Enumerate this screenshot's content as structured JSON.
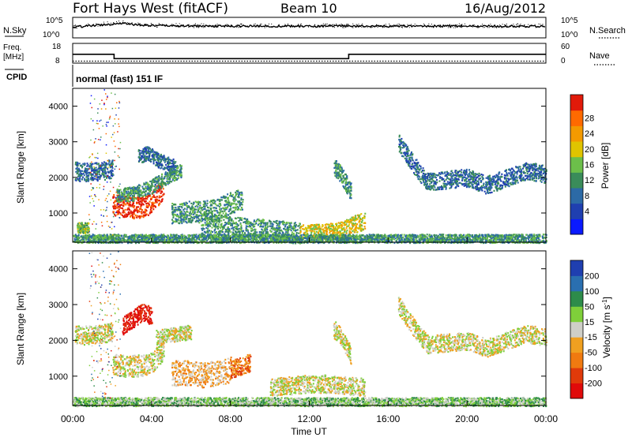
{
  "header": {
    "station": "Fort Hays West (fitACF)",
    "beam": "Beam 10",
    "date": "16/Aug/2012"
  },
  "status_panel": {
    "left_nsky": "N.Sky",
    "right_nsearch": "N.Search",
    "noise_ticks_left": [
      "10^5",
      "10^0"
    ],
    "noise_ticks_right": [
      "10^5",
      "10^0"
    ],
    "freq_label_line1": "Freq.",
    "freq_label_line2": "[MHz]",
    "freq_ticks": [
      "18",
      "8"
    ],
    "nave_label": "Nave",
    "nave_ticks": [
      "60",
      "0"
    ],
    "cpid_label": "CPID",
    "cpid_text": "normal (fast) 151 IF"
  },
  "colors": {
    "power_scale": [
      "#0a1aff",
      "#1f3fb0",
      "#2c6aa6",
      "#3a8c5a",
      "#6cbf4a",
      "#e0c400",
      "#f39a00",
      "#ff6a00",
      "#e11a0a"
    ],
    "velocity_scale": [
      "#1f3fb0",
      "#2a6fb0",
      "#2d8c4a",
      "#7fcf3a",
      "#cfcfc8",
      "#f0a020",
      "#f07a10",
      "#e03a0a",
      "#e00a0a"
    ]
  },
  "chart_data": [
    {
      "type": "line",
      "title": "Fort Hays West (fitACF)  Beam 10  16/Aug/2012",
      "panel": "noise",
      "x": [
        0,
        1,
        2,
        2.5,
        3,
        4,
        6,
        8,
        12,
        16,
        20,
        24
      ],
      "series": [
        {
          "name": "N.Sky",
          "values": [
            2.6,
            3.0,
            3.4,
            3.6,
            3.3,
            3.0,
            2.9,
            2.85,
            2.85,
            2.85,
            2.85,
            2.85
          ]
        }
      ],
      "ylim": [
        0,
        5
      ],
      "right_series_label": "N.Search"
    },
    {
      "type": "line",
      "panel": "frequency",
      "ylabel": "Freq. [MHz]",
      "x": [
        0,
        2.1,
        2.1,
        14.0,
        14.0,
        24
      ],
      "series": [
        {
          "name": "Freq.",
          "values": [
            12.5,
            12.5,
            10.3,
            10.3,
            12.5,
            12.5
          ]
        },
        {
          "name": "Nave",
          "values": [
            9.0,
            9.0,
            9.0,
            9.0,
            9.0,
            9.0
          ]
        }
      ],
      "ylim": [
        8,
        18
      ]
    },
    {
      "type": "heatmap",
      "panel": "power",
      "xlabel": "",
      "ylabel": "Slant Range [km]",
      "colorbar_label": "Power [dB]",
      "colorbar_ticks": [
        4,
        8,
        12,
        16,
        20,
        24,
        28
      ],
      "x_ticks": [
        "00:00",
        "04:00",
        "08:00",
        "12:00",
        "16:00",
        "20:00",
        "00:00"
      ],
      "y_ticks": [
        1000,
        2000,
        3000,
        4000
      ],
      "xlim": [
        0,
        24
      ],
      "ylim": [
        180,
        4500
      ],
      "regions": [
        {
          "x": [
            0.1,
            0.5,
            1.0,
            1.5,
            2.0
          ],
          "y_center": [
            2200,
            2150,
            2180,
            2200,
            2250
          ],
          "thickness": 260,
          "level": 2
        },
        {
          "x": [
            2.0,
            2.6,
            3.2,
            3.8,
            4.2,
            4.6
          ],
          "y_center": [
            1250,
            1200,
            1150,
            1250,
            1450,
            1700
          ],
          "thickness": 300,
          "level": 8
        },
        {
          "x": [
            2.2,
            3.0,
            3.8,
            4.4,
            5.0,
            5.5
          ],
          "y_center": [
            1500,
            1550,
            1700,
            1900,
            2100,
            2200
          ],
          "thickness": 200,
          "level": 3
        },
        {
          "x": [
            3.3,
            3.8,
            4.3,
            4.8,
            5.2
          ],
          "y_center": [
            2600,
            2700,
            2500,
            2400,
            2300
          ],
          "thickness": 200,
          "level": 2
        },
        {
          "x": [
            5.0,
            5.7,
            6.4,
            7.2,
            8.0,
            8.6
          ],
          "y_center": [
            1000,
            1050,
            1050,
            1100,
            1300,
            1400
          ],
          "thickness": 300,
          "level": 3
        },
        {
          "x": [
            6.5,
            7.5,
            8.5,
            9.5,
            10.5,
            11.5
          ],
          "y_center": [
            700,
            650,
            600,
            550,
            500,
            450
          ],
          "thickness": 300,
          "level": 3
        },
        {
          "x": [
            11.5,
            12.5,
            13.5,
            14.3,
            14.8
          ],
          "y_center": [
            450,
            450,
            500,
            700,
            800
          ],
          "thickness": 250,
          "level": 5
        },
        {
          "x": [
            0.2,
            0.5,
            0.8
          ],
          "y_center": [
            600,
            600,
            600
          ],
          "thickness": 150,
          "level": 4
        },
        {
          "x": [
            13.2,
            13.6,
            13.9,
            14.1
          ],
          "y_center": [
            2350,
            2100,
            1800,
            1600
          ],
          "thickness": 250,
          "level": 3
        },
        {
          "x": [
            16.5,
            17.0,
            17.5,
            18.0,
            19.0,
            20.0,
            21.0,
            22.0,
            23.0,
            24.0
          ],
          "y_center": [
            3000,
            2600,
            2200,
            1900,
            1950,
            2000,
            1800,
            2000,
            2200,
            2100
          ],
          "thickness": 250,
          "level": 2
        },
        {
          "x": [
            0.0,
            4.0,
            8.0,
            12.0,
            16.0,
            20.0,
            24.0
          ],
          "y_center": [
            300,
            300,
            300,
            300,
            300,
            300,
            300
          ],
          "thickness": 120,
          "level": 3
        }
      ]
    },
    {
      "type": "heatmap",
      "panel": "velocity",
      "xlabel": "Time UT",
      "ylabel": "Slant Range [km]",
      "colorbar_label": "Velocity [m s^-1]",
      "colorbar_ticks": [
        200,
        100,
        50,
        15,
        -15,
        -50,
        -100,
        -200
      ],
      "x_ticks": [
        "00:00",
        "04:00",
        "08:00",
        "12:00",
        "16:00",
        "20:00",
        "00:00"
      ],
      "y_ticks": [
        1000,
        2000,
        3000,
        4000
      ],
      "xlim": [
        0,
        24
      ],
      "ylim": [
        180,
        4500
      ],
      "regions": [
        {
          "x": [
            0.1,
            0.5,
            1.0,
            1.5,
            2.0
          ],
          "y_center": [
            2200,
            2150,
            2180,
            2200,
            2250
          ],
          "thickness": 260,
          "level": 4
        },
        {
          "x": [
            2.0,
            2.6,
            3.2,
            3.8,
            4.2,
            4.6
          ],
          "y_center": [
            1350,
            1300,
            1300,
            1350,
            1500,
            1800
          ],
          "thickness": 300,
          "level": 4
        },
        {
          "x": [
            2.5,
            3.0,
            3.5,
            4.0
          ],
          "y_center": [
            2400,
            2600,
            2800,
            2700
          ],
          "thickness": 250,
          "level": 8
        },
        {
          "x": [
            4.2,
            4.8,
            5.4,
            6.0
          ],
          "y_center": [
            2100,
            2150,
            2200,
            2250
          ],
          "thickness": 200,
          "level": 4
        },
        {
          "x": [
            5.0,
            5.8,
            6.6,
            7.4,
            8.0
          ],
          "y_center": [
            1100,
            1100,
            1050,
            1100,
            1200
          ],
          "thickness": 350,
          "level": 5
        },
        {
          "x": [
            8.0,
            8.5,
            9.0
          ],
          "y_center": [
            1200,
            1300,
            1400
          ],
          "thickness": 250,
          "level": 6
        },
        {
          "x": [
            10.0,
            11.0,
            12.0,
            13.0,
            14.0,
            14.8
          ],
          "y_center": [
            700,
            750,
            800,
            800,
            750,
            700
          ],
          "thickness": 250,
          "level": 4
        },
        {
          "x": [
            0.0,
            4.0,
            8.0,
            12.0,
            16.0,
            20.0,
            24.0
          ],
          "y_center": [
            300,
            300,
            300,
            300,
            300,
            300,
            300
          ],
          "thickness": 120,
          "level": 3
        },
        {
          "x": [
            13.2,
            13.6,
            13.9,
            14.1
          ],
          "y_center": [
            2350,
            2100,
            1800,
            1600
          ],
          "thickness": 250,
          "level": 4
        },
        {
          "x": [
            16.5,
            17.0,
            17.5,
            18.0,
            19.0,
            20.0,
            21.0,
            22.0,
            23.0,
            24.0
          ],
          "y_center": [
            3000,
            2600,
            2200,
            1900,
            1950,
            2000,
            1800,
            2000,
            2200,
            2100
          ],
          "thickness": 250,
          "level": 4
        }
      ]
    }
  ]
}
